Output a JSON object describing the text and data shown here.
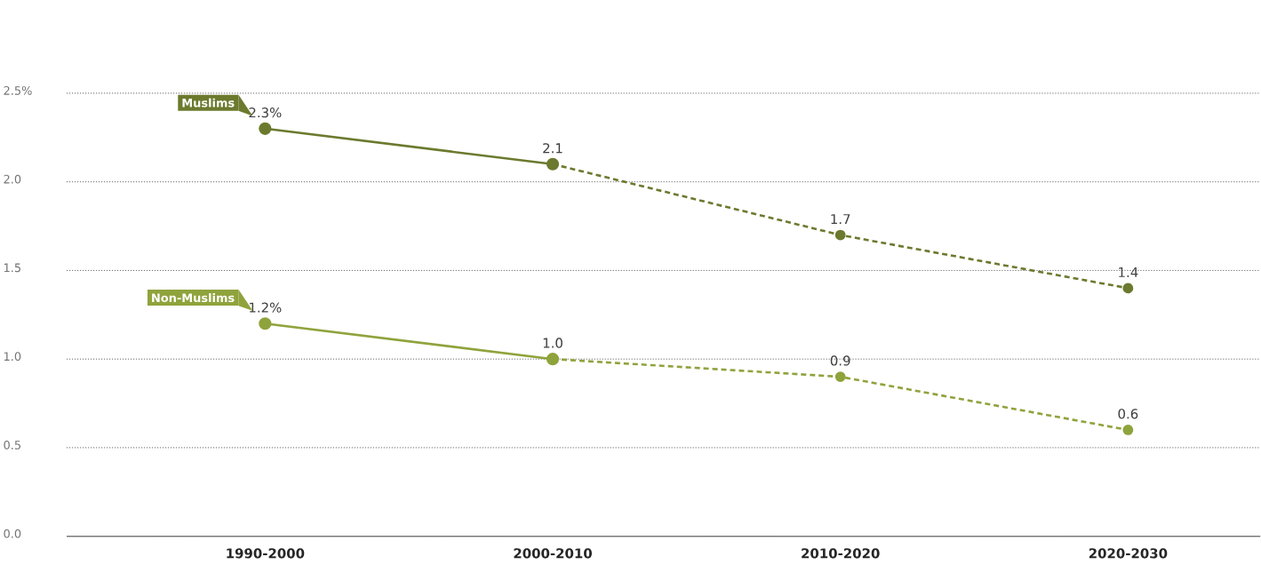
{
  "chart_data": {
    "type": "line",
    "categories": [
      "1990-2000",
      "2000-2010",
      "2010-2020",
      "2020-2030"
    ],
    "series": [
      {
        "name": "Muslims",
        "color": "#6b7a2e",
        "values": [
          2.3,
          2.1,
          null,
          null
        ],
        "value_labels": [
          "2.3%",
          "2.1",
          null,
          null
        ],
        "line_style": "solid"
      },
      {
        "color": "#6b7a2e",
        "values": [
          null,
          2.1,
          1.7,
          1.4
        ],
        "value_labels": [
          null,
          null,
          "1.7",
          "1.4"
        ],
        "line_style": "dashed"
      },
      {
        "name": "Non-Muslims",
        "color": "#8fa33c",
        "values": [
          1.2,
          1.0,
          null,
          null
        ],
        "value_labels": [
          "1.2%",
          "1.0",
          null,
          null
        ],
        "line_style": "solid"
      },
      {
        "color": "#8fa33c",
        "values": [
          null,
          1.0,
          0.9,
          0.6
        ],
        "value_labels": [
          null,
          null,
          "0.9",
          "0.6"
        ],
        "line_style": "dashed"
      }
    ],
    "ylim": [
      0,
      2.5
    ],
    "yticks": [
      {
        "value": 0,
        "label": "0.0"
      },
      {
        "value": 0.5,
        "label": "0.5"
      },
      {
        "value": 1,
        "label": "1.0"
      },
      {
        "value": 1.5,
        "label": "1.5"
      },
      {
        "value": 2,
        "label": "2.0"
      },
      {
        "value": 2.5,
        "label": "2.5%"
      }
    ],
    "grid": "y",
    "legend": "top left",
    "marker": "circle"
  }
}
